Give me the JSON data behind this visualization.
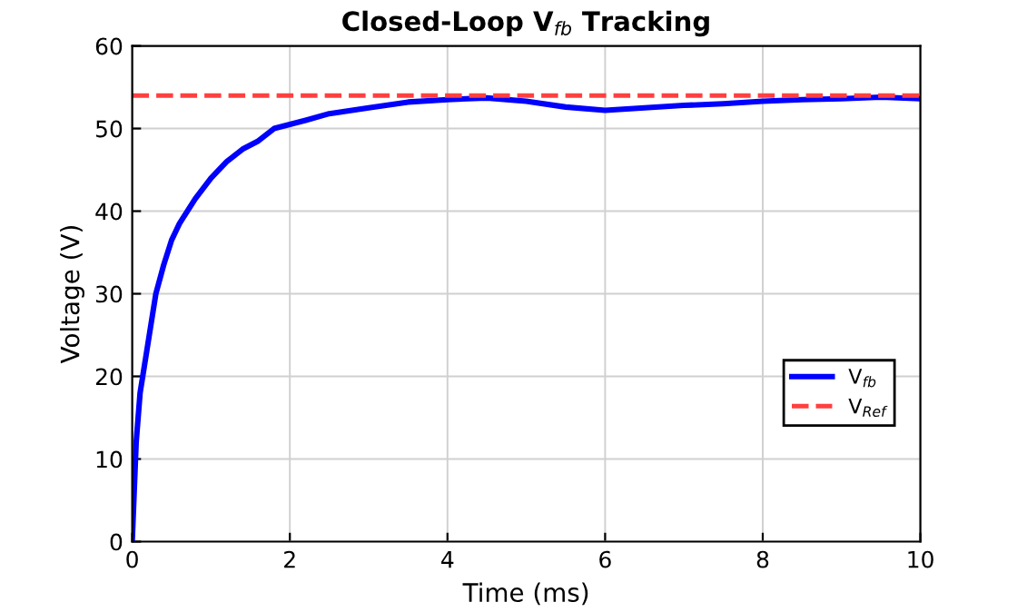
{
  "chart_data": {
    "type": "line",
    "title": "Closed-Loop V$_{fb}$ Tracking",
    "xlabel": "Time (ms)",
    "ylabel": "Voltage (V)",
    "x": [
      0,
      0.05,
      0.1,
      0.2,
      0.3,
      0.4,
      0.5,
      0.6,
      0.8,
      1.0,
      1.2,
      1.4,
      1.6,
      1.8,
      2.0,
      2.2,
      2.5,
      3.0,
      3.5,
      4.0,
      4.5,
      5.0,
      5.5,
      6.0,
      6.5,
      7.0,
      7.5,
      8.0,
      8.5,
      9.0,
      9.5,
      10
    ],
    "series": [
      {
        "name": "V$_{fb}$",
        "color": "#0000ff",
        "values": [
          0,
          12,
          18,
          24,
          30,
          33.5,
          36.5,
          38.5,
          41.5,
          44,
          46,
          47.5,
          48.5,
          50,
          50.5,
          51,
          51.8,
          52.5,
          53.2,
          53.5,
          53.7,
          53.3,
          52.6,
          52.2,
          52.5,
          52.8,
          53,
          53.3,
          53.5,
          53.6,
          53.8,
          53.6
        ]
      }
    ],
    "ref_lines": [
      {
        "axis": "y",
        "value": 54,
        "label": "V$_{Ref}$",
        "color": "#ff4040",
        "line_style": "dashed"
      }
    ],
    "xlim": [
      0,
      10
    ],
    "xticks": [
      0,
      2,
      4,
      6,
      8,
      10
    ],
    "ylim": [
      0,
      60
    ],
    "yticks": [
      0,
      10,
      20,
      30,
      40,
      50,
      60
    ],
    "grid": true,
    "legend": "right",
    "line_style": "solid",
    "marker": "none"
  }
}
